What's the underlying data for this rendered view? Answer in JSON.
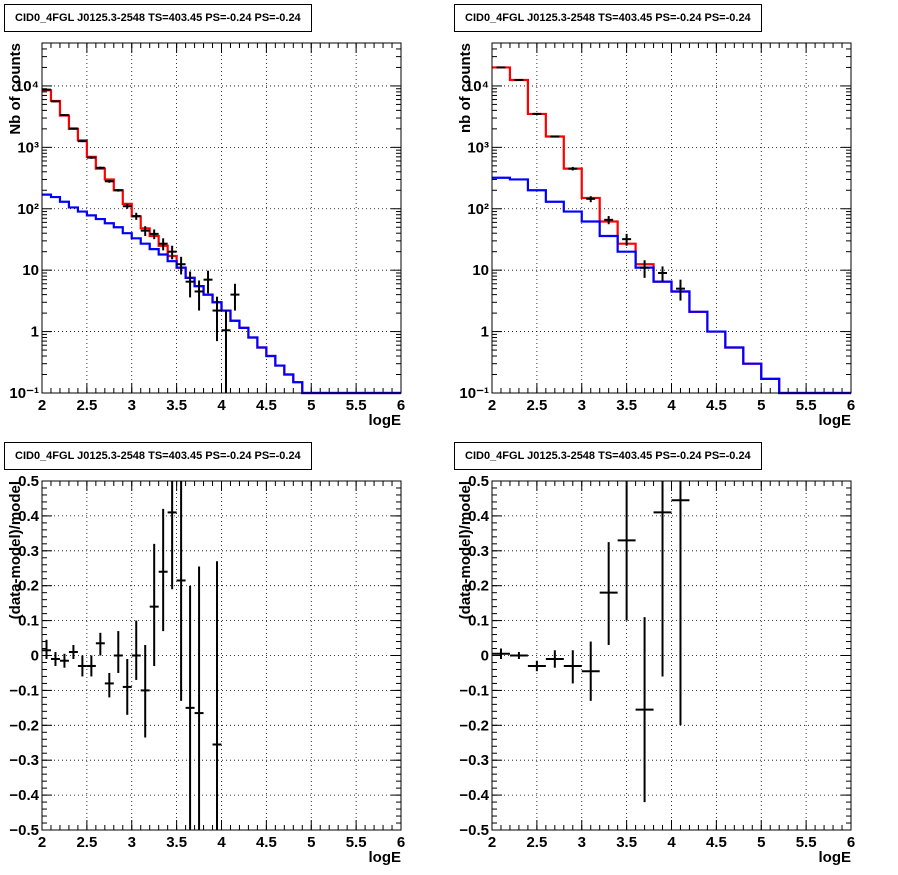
{
  "title": "CID0_4FGL J0125.3-2548 TS=403.45 PS=-0.24 PS=-0.24",
  "colors": {
    "total_model": "#ff0000",
    "background_model": "#0000ff",
    "data": "#000000"
  },
  "chart_data": [
    {
      "type": "line",
      "panel": "top-left",
      "title": "CID0_4FGL J0125.3-2548 TS=403.45 PS=-0.24 PS=-0.24",
      "xlabel": "logE",
      "ylabel": "Nb of counts",
      "xlim": [
        2,
        6
      ],
      "ylim": [
        0.1,
        50000
      ],
      "yscale": "log",
      "grid": true,
      "xticks": [
        "2",
        "2.5",
        "3",
        "3.5",
        "4",
        "4.5",
        "5",
        "5.5",
        "6"
      ],
      "yticks": [
        "10⁻¹",
        "1",
        "10",
        "10²",
        "10³",
        "10⁴"
      ],
      "bin_edges": [
        2.0,
        2.1,
        2.2,
        2.3,
        2.4,
        2.5,
        2.6,
        2.7,
        2.8,
        2.9,
        3.0,
        3.1,
        3.2,
        3.3,
        3.4,
        3.5,
        3.6,
        3.7,
        3.8,
        3.9,
        4.0,
        4.1,
        4.2,
        4.3,
        4.4,
        4.5,
        4.6,
        4.7,
        4.8,
        4.9,
        5.0,
        5.1,
        5.2,
        5.3,
        5.4,
        5.5,
        5.6,
        5.7,
        5.8,
        5.9,
        6.0
      ],
      "series": [
        {
          "style": "step",
          "color": "#ff0000",
          "values": [
            8500,
            5700,
            3300,
            2000,
            1300,
            700,
            450,
            300,
            200,
            120,
            75,
            48,
            36,
            25,
            17,
            11,
            7.5,
            5.5,
            4,
            3,
            2.2,
            1.5,
            1.15,
            0.8,
            0.55,
            0.4,
            0.28,
            0.2,
            0.15,
            0.1,
            0.1,
            0.1,
            0.1,
            0.1,
            0.1,
            0.1,
            0.1,
            0.1,
            0.1,
            0.1
          ]
        },
        {
          "style": "step",
          "color": "#0000ff",
          "values": [
            170,
            155,
            130,
            105,
            90,
            78,
            68,
            58,
            50,
            40,
            33,
            27,
            22,
            18,
            14,
            11,
            7.5,
            5.5,
            4,
            3,
            2.2,
            1.5,
            1.15,
            0.8,
            0.55,
            0.4,
            0.28,
            0.2,
            0.15,
            0.1,
            0.1,
            0.1,
            0.1,
            0.1,
            0.1,
            0.1,
            0.1,
            0.1,
            0.1,
            0.1
          ]
        },
        {
          "style": "errorbar",
          "color": "#000000",
          "x": [
            2.05,
            2.15,
            2.25,
            2.35,
            2.45,
            2.55,
            2.65,
            2.75,
            2.85,
            2.95,
            3.05,
            3.15,
            3.25,
            3.35,
            3.45,
            3.55,
            3.65,
            3.75,
            3.85,
            3.95,
            4.05,
            4.15
          ],
          "y": [
            8700,
            5600,
            3350,
            2030,
            1260,
            680,
            465,
            280,
            200,
            110,
            76,
            44,
            39,
            27,
            20,
            12.5,
            6.5,
            4.5,
            7,
            2.2,
            1.05,
            4
          ],
          "ylow": [
            8500,
            5450,
            3250,
            1950,
            1220,
            650,
            445,
            265,
            190,
            100,
            66,
            36,
            32,
            21,
            15,
            8.5,
            3.6,
            2.2,
            4.2,
            0.7,
            0.1,
            2.2
          ],
          "yhigh": [
            8900,
            5750,
            3450,
            2100,
            1300,
            710,
            485,
            295,
            210,
            120,
            86,
            52,
            46,
            33,
            25,
            16.5,
            9.5,
            6.8,
            9.8,
            3.7,
            2.2,
            6
          ]
        }
      ]
    },
    {
      "type": "line",
      "panel": "top-right",
      "title": "CID0_4FGL J0125.3-2548 TS=403.45 PS=-0.24 PS=-0.24",
      "xlabel": "logE",
      "ylabel": "nb of counts",
      "xlim": [
        2,
        6
      ],
      "ylim": [
        0.1,
        50000
      ],
      "yscale": "log",
      "grid": true,
      "xticks": [
        "2",
        "2.5",
        "3",
        "3.5",
        "4",
        "4.5",
        "5",
        "5.5",
        "6"
      ],
      "yticks": [
        "10⁻¹",
        "1",
        "10",
        "10²",
        "10³",
        "10⁴"
      ],
      "bin_edges": [
        2.0,
        2.2,
        2.4,
        2.6,
        2.8,
        3.0,
        3.2,
        3.4,
        3.6,
        3.8,
        4.0,
        4.2,
        4.4,
        4.6,
        4.8,
        5.0,
        5.2,
        5.4,
        5.6,
        5.8,
        6.0
      ],
      "series": [
        {
          "style": "step",
          "color": "#ff0000",
          "values": [
            20000,
            12500,
            3500,
            1500,
            450,
            150,
            62,
            27,
            12.5,
            6.5,
            4.5,
            2.1,
            1.0,
            0.55,
            0.3,
            0.17,
            0.1,
            0.1,
            0.1,
            0.1
          ]
        },
        {
          "style": "step",
          "color": "#0000ff",
          "values": [
            320,
            300,
            200,
            130,
            90,
            62,
            36,
            20,
            11,
            6.5,
            4.5,
            2.1,
            1.0,
            0.55,
            0.3,
            0.17,
            0.1,
            0.1,
            0.1,
            0.1
          ]
        },
        {
          "style": "errorbar",
          "color": "#000000",
          "x": [
            2.1,
            2.3,
            2.5,
            2.7,
            2.9,
            3.1,
            3.3,
            3.5,
            3.7,
            3.9,
            4.1
          ],
          "y": [
            20000,
            12500,
            3500,
            1500,
            450,
            145,
            66,
            32,
            11,
            9,
            5
          ],
          "ylow": [
            19700,
            12300,
            3400,
            1450,
            420,
            128,
            56,
            25,
            7.5,
            6.5,
            3.2
          ],
          "yhigh": [
            20300,
            12700,
            3600,
            1550,
            480,
            160,
            76,
            39,
            14.5,
            11.5,
            7
          ]
        }
      ]
    },
    {
      "type": "scatter",
      "panel": "bottom-left",
      "title": "CID0_4FGL J0125.3-2548 TS=403.45 PS=-0.24 PS=-0.24",
      "xlabel": "logE",
      "ylabel": "(data-model)/model",
      "xlim": [
        2,
        6
      ],
      "ylim": [
        -0.5,
        0.5
      ],
      "grid": true,
      "xticks": [
        "2",
        "2.5",
        "3",
        "3.5",
        "4",
        "4.5",
        "5",
        "5.5",
        "6"
      ],
      "yticks": [
        "−0.5",
        "−0.4",
        "−0.3",
        "−0.2",
        "−0.1",
        "0",
        "0.1",
        "0.2",
        "0.3",
        "0.4",
        "0.5"
      ],
      "series": [
        {
          "style": "errorbar",
          "color": "#000000",
          "xerr": 0.05,
          "x": [
            2.05,
            2.15,
            2.25,
            2.35,
            2.45,
            2.55,
            2.65,
            2.75,
            2.85,
            2.95,
            3.05,
            3.15,
            3.25,
            3.35,
            3.45,
            3.55,
            3.65,
            3.75,
            3.95
          ],
          "y": [
            0.015,
            -0.01,
            -0.015,
            0.01,
            -0.03,
            -0.03,
            0.035,
            -0.08,
            0.0,
            -0.09,
            0.0,
            -0.1,
            0.14,
            0.24,
            0.41,
            0.215,
            -0.15,
            -0.165,
            -0.255
          ],
          "ylow": [
            -0.01,
            -0.03,
            -0.035,
            -0.01,
            -0.06,
            -0.06,
            0.0,
            -0.12,
            -0.05,
            -0.17,
            -0.07,
            -0.235,
            -0.03,
            0.07,
            0.19,
            -0.13,
            -0.5,
            -0.5,
            -0.5
          ],
          "yhigh": [
            0.045,
            0.01,
            0.005,
            0.03,
            0.0,
            0.0,
            0.065,
            -0.05,
            0.07,
            -0.01,
            0.1,
            0.03,
            0.32,
            0.42,
            0.5,
            0.5,
            0.2,
            0.255,
            0.27
          ]
        }
      ]
    },
    {
      "type": "scatter",
      "panel": "bottom-right",
      "title": "CID0_4FGL J0125.3-2548 TS=403.45 PS=-0.24 PS=-0.24",
      "xlabel": "logE",
      "ylabel": "(data-model)/model",
      "xlim": [
        2,
        6
      ],
      "ylim": [
        -0.5,
        0.5
      ],
      "grid": true,
      "xticks": [
        "2",
        "2.5",
        "3",
        "3.5",
        "4",
        "4.5",
        "5",
        "5.5",
        "6"
      ],
      "yticks": [
        "−0.5",
        "−0.4",
        "−0.3",
        "−0.2",
        "−0.1",
        "0",
        "0.1",
        "0.2",
        "0.3",
        "0.4",
        "0.5"
      ],
      "series": [
        {
          "style": "errorbar",
          "color": "#000000",
          "xerr": 0.1,
          "x": [
            2.1,
            2.3,
            2.5,
            2.7,
            2.9,
            3.1,
            3.3,
            3.5,
            3.7,
            3.9,
            4.1
          ],
          "y": [
            0.005,
            0.0,
            -0.03,
            -0.01,
            -0.03,
            -0.045,
            0.18,
            0.33,
            -0.155,
            0.41,
            0.445
          ],
          "ylow": [
            -0.01,
            -0.01,
            -0.045,
            -0.035,
            -0.08,
            -0.13,
            0.03,
            0.1,
            -0.42,
            -0.06,
            -0.2
          ],
          "yhigh": [
            0.02,
            0.01,
            -0.015,
            0.015,
            0.015,
            0.04,
            0.325,
            0.5,
            0.11,
            0.5,
            0.5
          ]
        }
      ]
    }
  ]
}
